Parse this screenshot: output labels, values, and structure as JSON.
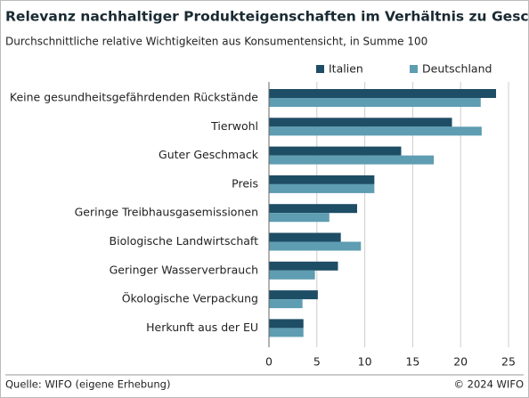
{
  "chart_data": {
    "type": "bar",
    "orientation": "horizontal",
    "title": "Relevanz nachhaltiger Produkteigenschaften im Verhältnis zu Geschmack/ Preis",
    "subtitle": "Durchschnittliche relative Wichtigkeiten aus Konsumentensicht, in Summe 100",
    "categories": [
      "Keine gesundheitsgefährdenden Rückstände",
      "Tierwohl",
      "Guter Geschmack",
      "Preis",
      "Geringe Treibhausgasemissionen",
      "Biologische Landwirtschaft",
      "Geringer Wasserverbrauch",
      "Ökologische Verpackung",
      "Herkunft aus der EU"
    ],
    "series": [
      {
        "name": "Italien",
        "color": "#1e4d66",
        "values": [
          23.7,
          19.1,
          13.8,
          11.0,
          9.2,
          7.5,
          7.2,
          5.1,
          3.6
        ]
      },
      {
        "name": "Deutschland",
        "color": "#5e9db2",
        "values": [
          22.1,
          22.2,
          17.2,
          11.0,
          6.3,
          9.6,
          4.8,
          3.5,
          3.6
        ]
      }
    ],
    "xlim": [
      0,
      25
    ],
    "xticks": [
      0,
      5,
      10,
      15,
      20,
      25
    ],
    "grid": true,
    "source": "Quelle: WIFO (eigene Erhebung)",
    "credit": "© 2024 WIFO"
  }
}
